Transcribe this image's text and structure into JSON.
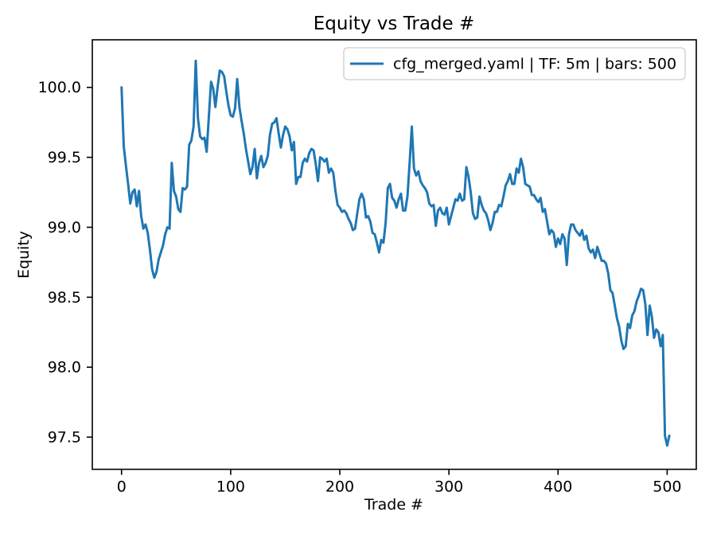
{
  "chart_data": {
    "type": "line",
    "title": "Equity vs Trade #",
    "xlabel": "Trade #",
    "ylabel": "Equity",
    "grid": false,
    "legend": {
      "position": "upper right",
      "entries": [
        {
          "label": "cfg_merged.yaml | TF: 5m | bars: 500",
          "color": "#1f77b4"
        }
      ]
    },
    "xlim": [
      -26.8,
      526.7
    ],
    "ylim": [
      97.27,
      100.34
    ],
    "xticks": {
      "values": [
        0,
        100,
        200,
        300,
        400,
        500
      ],
      "labels": [
        "0",
        "100",
        "200",
        "300",
        "400",
        "500"
      ]
    },
    "yticks": {
      "values": [
        97.5,
        98.0,
        98.5,
        99.0,
        99.5,
        100.0
      ],
      "labels": [
        "97.5",
        "98.0",
        "98.5",
        "99.0",
        "99.5",
        "100.0"
      ]
    },
    "series": [
      {
        "name": "cfg_merged.yaml | TF: 5m | bars: 500",
        "color": "#1f77b4",
        "x_start": 0,
        "x_step": 2,
        "equity": [
          100.0,
          99.58,
          99.44,
          99.31,
          99.17,
          99.25,
          99.27,
          99.15,
          99.26,
          99.08,
          98.99,
          99.02,
          98.96,
          98.84,
          98.7,
          98.64,
          98.68,
          98.77,
          98.82,
          98.87,
          98.95,
          99.0,
          98.99,
          99.46,
          99.26,
          99.22,
          99.13,
          99.11,
          99.28,
          99.27,
          99.29,
          99.59,
          99.62,
          99.72,
          100.19,
          99.78,
          99.65,
          99.63,
          99.64,
          99.54,
          99.79,
          100.04,
          99.99,
          99.86,
          100.0,
          100.12,
          100.11,
          100.08,
          99.97,
          99.87,
          99.8,
          99.79,
          99.85,
          100.06,
          99.86,
          99.76,
          99.67,
          99.56,
          99.47,
          99.38,
          99.43,
          99.56,
          99.35,
          99.46,
          99.51,
          99.43,
          99.46,
          99.51,
          99.66,
          99.74,
          99.75,
          99.78,
          99.67,
          99.57,
          99.66,
          99.72,
          99.7,
          99.65,
          99.55,
          99.61,
          99.31,
          99.36,
          99.36,
          99.46,
          99.49,
          99.47,
          99.53,
          99.56,
          99.55,
          99.45,
          99.33,
          99.5,
          99.49,
          99.47,
          99.49,
          99.39,
          99.42,
          99.39,
          99.26,
          99.16,
          99.14,
          99.11,
          99.12,
          99.1,
          99.06,
          99.03,
          98.98,
          98.99,
          99.1,
          99.2,
          99.24,
          99.2,
          99.07,
          99.08,
          99.04,
          98.96,
          98.95,
          98.89,
          98.82,
          98.91,
          98.89,
          99.03,
          99.28,
          99.31,
          99.21,
          99.19,
          99.14,
          99.2,
          99.24,
          99.12,
          99.12,
          99.22,
          99.46,
          99.72,
          99.42,
          99.37,
          99.4,
          99.33,
          99.3,
          99.28,
          99.25,
          99.17,
          99.15,
          99.16,
          99.01,
          99.12,
          99.14,
          99.1,
          99.09,
          99.14,
          99.02,
          99.08,
          99.14,
          99.2,
          99.19,
          99.24,
          99.19,
          99.2,
          99.43,
          99.36,
          99.25,
          99.1,
          99.06,
          99.07,
          99.22,
          99.16,
          99.12,
          99.1,
          99.05,
          98.98,
          99.03,
          99.11,
          99.11,
          99.16,
          99.15,
          99.22,
          99.3,
          99.33,
          99.38,
          99.31,
          99.31,
          99.42,
          99.39,
          99.49,
          99.43,
          99.31,
          99.3,
          99.29,
          99.23,
          99.23,
          99.2,
          99.18,
          99.21,
          99.11,
          99.13,
          99.04,
          98.95,
          98.98,
          98.96,
          98.86,
          98.92,
          98.88,
          98.95,
          98.92,
          98.73,
          98.95,
          99.02,
          99.02,
          98.98,
          98.96,
          98.94,
          98.98,
          98.91,
          98.94,
          98.85,
          98.82,
          98.84,
          98.78,
          98.86,
          98.81,
          98.76,
          98.76,
          98.74,
          98.67,
          98.55,
          98.53,
          98.44,
          98.35,
          98.29,
          98.19,
          98.13,
          98.15,
          98.31,
          98.28,
          98.37,
          98.4,
          98.47,
          98.51,
          98.56,
          98.55,
          98.45,
          98.23,
          98.44,
          98.36,
          98.21,
          98.27,
          98.25,
          98.15,
          98.23,
          97.51,
          97.44,
          97.51
        ]
      }
    ]
  }
}
